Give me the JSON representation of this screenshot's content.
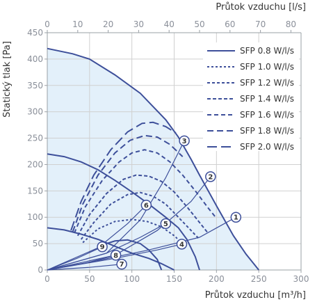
{
  "chart_data": {
    "type": "line",
    "title": "",
    "xlabel": "Průtok vzduchu [m³/h]",
    "x2label": "Průtok vzduchu [l/s]",
    "ylabel": "Statický tlak [Pa]",
    "xlim": [
      0,
      300
    ],
    "x2lim": [
      0,
      83.33
    ],
    "ylim": [
      0,
      450
    ],
    "xticks": [
      "0",
      "50",
      "100",
      "150",
      "200",
      "250",
      "300"
    ],
    "x2ticks": [
      "0",
      "10",
      "20",
      "30",
      "40",
      "50",
      "60",
      "70",
      "80"
    ],
    "yticks": [
      "0",
      "50",
      "100",
      "150",
      "200",
      "250",
      "300",
      "350",
      "400",
      "450"
    ],
    "grid": true,
    "legend_position": "top-right",
    "colors": {
      "curve": "#3d4f9a",
      "fill": "#e3f0fa",
      "grid": "#d0d0d0",
      "axis": "#9aa0a6"
    },
    "fan_curves": [
      {
        "points": [
          [
            0,
            420
          ],
          [
            30,
            410
          ],
          [
            50,
            400
          ],
          [
            80,
            370
          ],
          [
            110,
            335
          ],
          [
            140,
            285
          ],
          [
            155,
            252
          ],
          [
            170,
            210
          ],
          [
            180,
            180
          ],
          [
            200,
            122
          ],
          [
            220,
            65
          ],
          [
            235,
            30
          ],
          [
            245,
            10
          ],
          [
            250,
            0
          ]
        ]
      },
      {
        "points": [
          [
            0,
            220
          ],
          [
            20,
            215
          ],
          [
            40,
            205
          ],
          [
            60,
            190
          ],
          [
            80,
            170
          ],
          [
            100,
            148
          ],
          [
            120,
            125
          ],
          [
            140,
            100
          ],
          [
            155,
            80
          ],
          [
            165,
            58
          ],
          [
            175,
            25
          ],
          [
            180,
            0
          ]
        ]
      },
      {
        "points": [
          [
            0,
            80
          ],
          [
            20,
            76
          ],
          [
            40,
            68
          ],
          [
            60,
            58
          ],
          [
            80,
            45
          ],
          [
            100,
            32
          ],
          [
            120,
            22
          ],
          [
            135,
            12
          ],
          [
            150,
            0
          ]
        ]
      },
      {
        "points": [
          [
            60,
            45
          ],
          [
            80,
            55
          ],
          [
            95,
            57
          ],
          [
            110,
            50
          ],
          [
            120,
            38
          ],
          [
            130,
            20
          ],
          [
            135,
            0
          ]
        ]
      }
    ],
    "system_curves": [
      {
        "label": "1",
        "badge": [
          223,
          100
        ],
        "points": [
          [
            0,
            0
          ],
          [
            60,
            18
          ],
          [
            120,
            38
          ],
          [
            180,
            62
          ],
          [
            223,
            100
          ]
        ]
      },
      {
        "label": "2",
        "badge": [
          193,
          177
        ],
        "points": [
          [
            0,
            0
          ],
          [
            80,
            28
          ],
          [
            130,
            75
          ],
          [
            170,
            130
          ],
          [
            193,
            177
          ]
        ]
      },
      {
        "label": "3",
        "badge": [
          162,
          245
        ],
        "points": [
          [
            0,
            0
          ],
          [
            70,
            32
          ],
          [
            110,
            95
          ],
          [
            140,
            175
          ],
          [
            162,
            245
          ]
        ]
      },
      {
        "label": "4",
        "badge": [
          159,
          49
        ],
        "points": [
          [
            0,
            0
          ],
          [
            80,
            22
          ],
          [
            130,
            38
          ],
          [
            159,
            49
          ]
        ]
      },
      {
        "label": "5",
        "badge": [
          140,
          88
        ],
        "points": [
          [
            0,
            0
          ],
          [
            70,
            32
          ],
          [
            110,
            62
          ],
          [
            140,
            88
          ]
        ]
      },
      {
        "label": "6",
        "badge": [
          117,
          123
        ],
        "points": [
          [
            0,
            0
          ],
          [
            60,
            42
          ],
          [
            95,
            88
          ],
          [
            117,
            123
          ]
        ]
      },
      {
        "label": "7",
        "badge": [
          88,
          11
        ],
        "points": [
          [
            0,
            0
          ],
          [
            50,
            5
          ],
          [
            88,
            11
          ]
        ]
      },
      {
        "label": "8",
        "badge": [
          81,
          28
        ],
        "points": [
          [
            0,
            0
          ],
          [
            45,
            13
          ],
          [
            81,
            28
          ]
        ]
      },
      {
        "label": "9",
        "badge": [
          65,
          44
        ],
        "points": [
          [
            0,
            0
          ],
          [
            35,
            22
          ],
          [
            65,
            44
          ]
        ]
      }
    ],
    "series": [
      {
        "name": "SFP 0.8 W/l/s",
        "dash": "solid",
        "points": []
      },
      {
        "name": "SFP 1.0 W/l/s",
        "dash": "3 3",
        "points": [
          [
            42,
            52
          ],
          [
            60,
            78
          ],
          [
            80,
            92
          ],
          [
            100,
            96
          ],
          [
            118,
            92
          ],
          [
            135,
            82
          ],
          [
            150,
            65
          ],
          [
            160,
            50
          ]
        ]
      },
      {
        "name": "SFP 1.2 W/l/s",
        "dash": "4 3",
        "points": [
          [
            40,
            58
          ],
          [
            55,
            90
          ],
          [
            75,
            125
          ],
          [
            95,
            143
          ],
          [
            110,
            147
          ],
          [
            125,
            140
          ],
          [
            140,
            125
          ],
          [
            155,
            100
          ],
          [
            170,
            75
          ],
          [
            180,
            58
          ]
        ]
      },
      {
        "name": "SFP 1.4 W/l/s",
        "dash": "5 3",
        "points": [
          [
            36,
            65
          ],
          [
            50,
            105
          ],
          [
            70,
            145
          ],
          [
            90,
            172
          ],
          [
            105,
            180
          ],
          [
            120,
            178
          ],
          [
            135,
            168
          ],
          [
            150,
            148
          ],
          [
            165,
            120
          ],
          [
            180,
            90
          ],
          [
            190,
            70
          ]
        ]
      },
      {
        "name": "SFP 1.6 W/l/s",
        "dash": "6 4",
        "points": [
          [
            32,
            70
          ],
          [
            45,
            120
          ],
          [
            65,
            170
          ],
          [
            85,
            205
          ],
          [
            100,
            222
          ],
          [
            115,
            228
          ],
          [
            130,
            222
          ],
          [
            145,
            205
          ],
          [
            160,
            180
          ],
          [
            175,
            150
          ],
          [
            190,
            118
          ],
          [
            200,
            98
          ]
        ]
      },
      {
        "name": "SFP 1.8 W/l/s",
        "dash": "9 5",
        "points": [
          [
            30,
            72
          ],
          [
            42,
            125
          ],
          [
            60,
            180
          ],
          [
            80,
            222
          ],
          [
            98,
            246
          ],
          [
            115,
            255
          ],
          [
            130,
            252
          ],
          [
            145,
            238
          ],
          [
            160,
            215
          ]
        ]
      },
      {
        "name": "SFP 2.0 W/l/s",
        "dash": "14 6",
        "points": [
          [
            28,
            75
          ],
          [
            40,
            130
          ],
          [
            55,
            180
          ],
          [
            75,
            228
          ],
          [
            95,
            262
          ],
          [
            112,
            278
          ],
          [
            125,
            280
          ],
          [
            140,
            272
          ],
          [
            152,
            260
          ]
        ]
      }
    ]
  }
}
